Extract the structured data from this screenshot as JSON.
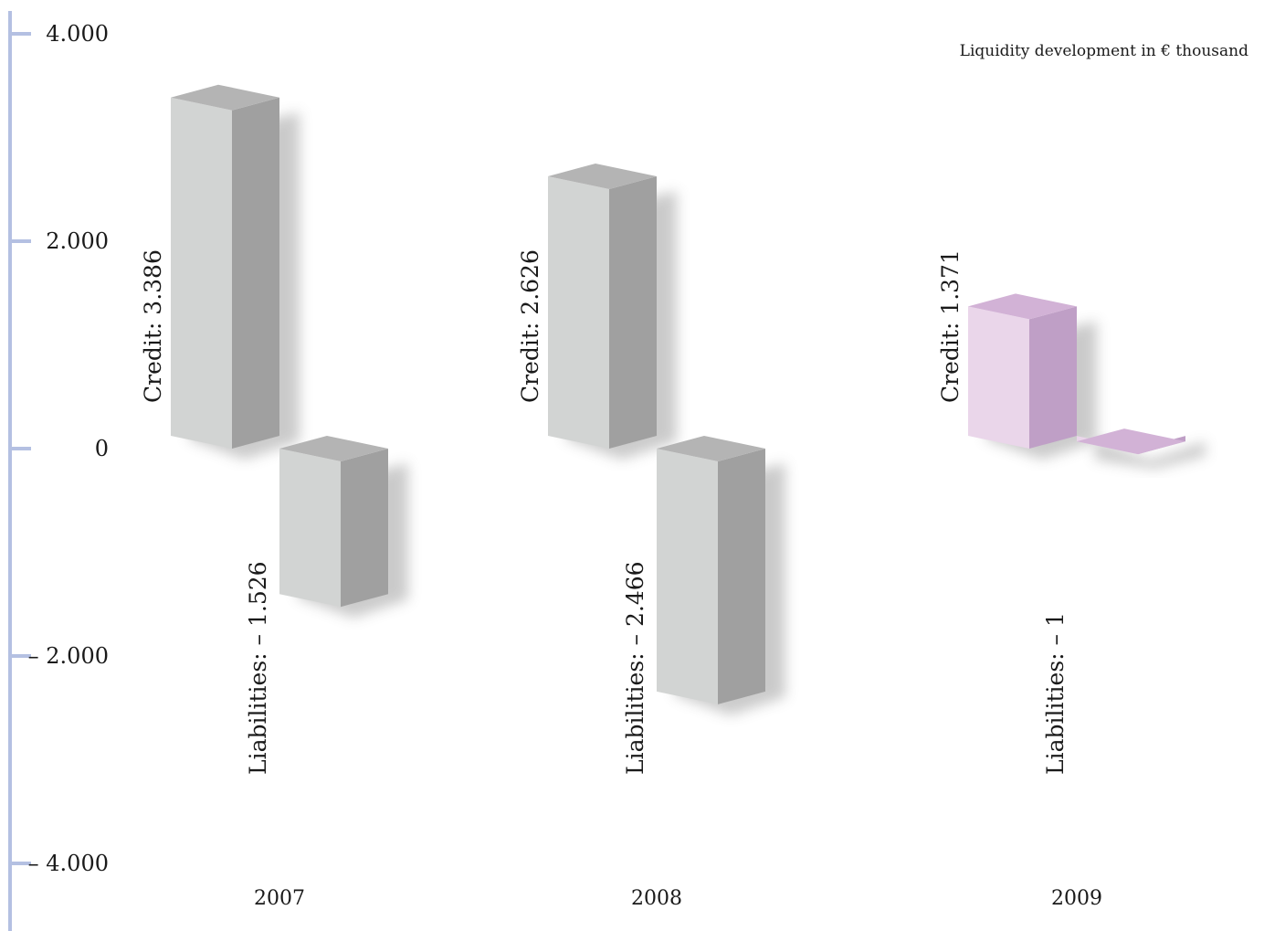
{
  "chart_data": {
    "type": "bar",
    "title": "Liquidity development in € thousand",
    "categories": [
      "2007",
      "2008",
      "2009"
    ],
    "series": [
      {
        "name": "Credit",
        "values": [
          3386,
          2626,
          1371
        ]
      },
      {
        "name": "Liabilities",
        "values": [
          -1526,
          -2466,
          -1
        ]
      }
    ],
    "bar_labels": {
      "credit": [
        "Credit: 3.386",
        "Credit: 2.626",
        "Credit: 1.371"
      ],
      "liabilities": [
        "Liabilities: – 1.526",
        "Liabilities: – 2.466",
        "Liabilities: – 1"
      ]
    },
    "y_ticks": [
      4000,
      2000,
      0,
      -2000,
      -4000
    ],
    "y_tick_labels": [
      "4.000",
      "2.000",
      "0",
      "– 2.000",
      "– 4.000"
    ],
    "ylim": [
      -4000,
      4000
    ],
    "xlabel": "",
    "ylabel": "",
    "grid": false,
    "colors": {
      "axis": "#b4c0e2",
      "grey_front": "#d2d4d3",
      "grey_top": "#b4b4b4",
      "grey_side": "#a0a0a0",
      "pink_front": "#ead6ea",
      "pink_top": "#d2b2d6",
      "pink_side": "#bf9fc6",
      "shadow": "#8c8c8c"
    }
  }
}
